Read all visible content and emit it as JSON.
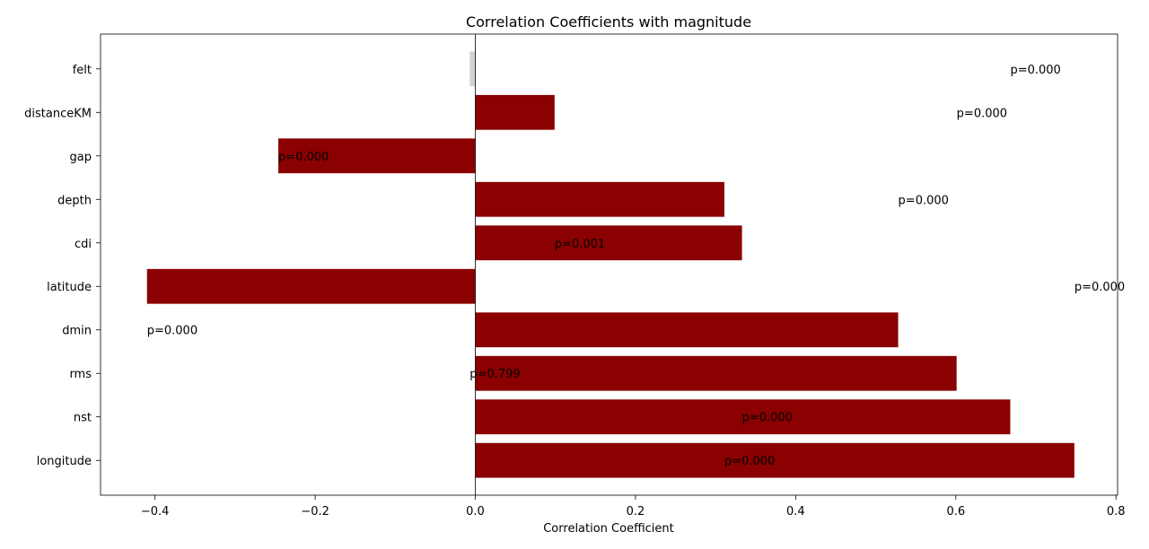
{
  "chart_data": {
    "type": "bar",
    "orientation": "horizontal",
    "title": "Correlation Coefficients with magnitude",
    "xlabel": "Correlation Coefficient",
    "ylabel": "",
    "xlim": [
      -0.468,
      0.802
    ],
    "xticks": [
      -0.4,
      -0.2,
      0.0,
      0.2,
      0.4,
      0.6,
      0.8
    ],
    "xtick_labels": [
      "−0.4",
      "−0.2",
      "0.0",
      "0.2",
      "0.4",
      "0.6",
      "0.8"
    ],
    "grid": false,
    "legend": "none",
    "categories": [
      "longitude",
      "nst",
      "rms",
      "dmin",
      "latitude",
      "cdi",
      "depth",
      "gap",
      "distanceKM",
      "felt"
    ],
    "values": [
      0.748,
      0.668,
      0.601,
      0.528,
      -0.41,
      0.333,
      0.311,
      -0.246,
      0.099,
      -0.007
    ],
    "bar_colors": [
      "#8b0000",
      "#8b0000",
      "#8b0000",
      "#8b0000",
      "#8b0000",
      "#8b0000",
      "#8b0000",
      "#8b0000",
      "#8b0000",
      "#d3d3d3"
    ],
    "annotations": [
      {
        "text": "p=0.000",
        "x": 0.311,
        "y_index": 0
      },
      {
        "text": "p=0.000",
        "x": 0.333,
        "y_index": 1
      },
      {
        "text": "p=0.799",
        "x": -0.007,
        "y_index": 2
      },
      {
        "text": "p=0.000",
        "x": -0.41,
        "y_index": 3
      },
      {
        "text": "p=0.000",
        "x": 0.748,
        "y_index": 4
      },
      {
        "text": "p=0.001",
        "x": 0.099,
        "y_index": 5
      },
      {
        "text": "p=0.000",
        "x": 0.528,
        "y_index": 6
      },
      {
        "text": "p=0.000",
        "x": -0.246,
        "y_index": 7
      },
      {
        "text": "p=0.000",
        "x": 0.601,
        "y_index": 8
      },
      {
        "text": "p=0.000",
        "x": 0.668,
        "y_index": 9
      }
    ]
  }
}
